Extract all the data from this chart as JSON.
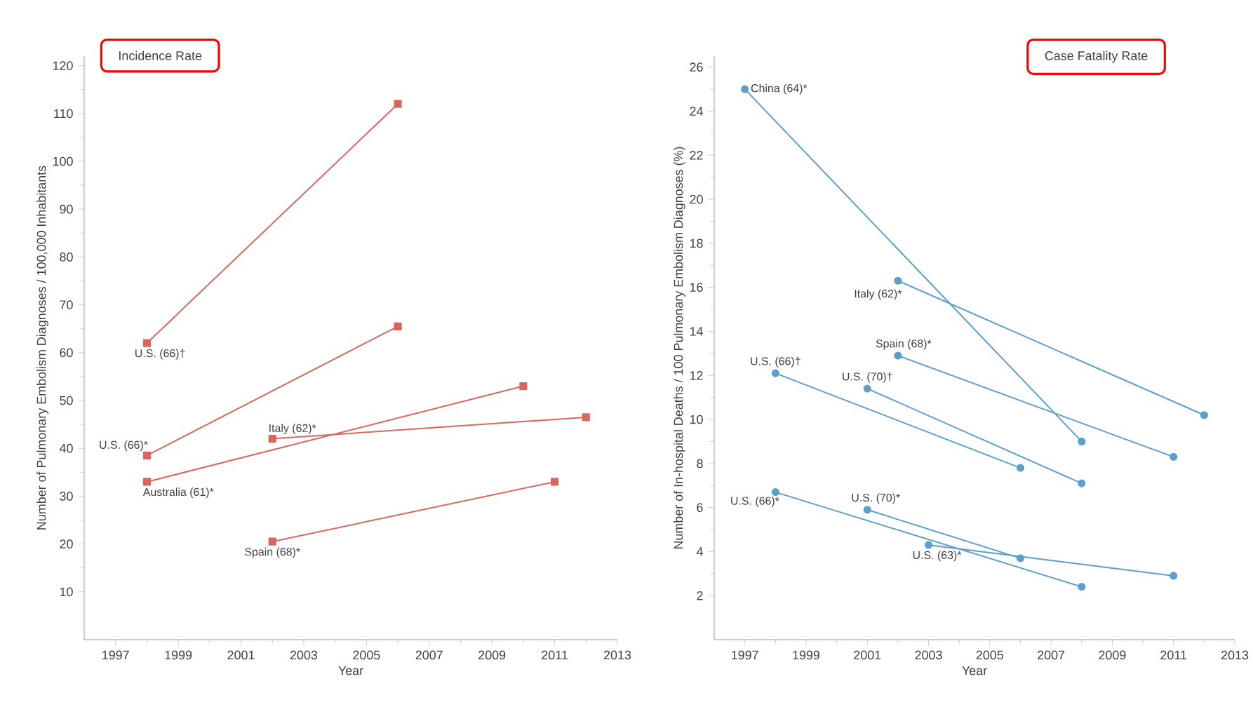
{
  "chart_data": [
    {
      "type": "line",
      "title": "Incidence Rate",
      "xlabel": "Year",
      "ylabel": "Number of Pulmonary Embolism Diagnoses / 100,000 Inhabitants",
      "marker": "square",
      "xlim": [
        1996,
        2013
      ],
      "xticks": [
        1997,
        1999,
        2001,
        2003,
        2005,
        2007,
        2009,
        2011,
        2013
      ],
      "ylim": [
        0,
        122
      ],
      "yticks": [
        10,
        20,
        30,
        40,
        50,
        60,
        70,
        80,
        90,
        100,
        110,
        120
      ],
      "series": [
        {
          "name": "U.S. (66)†",
          "color": "#d9665f",
          "x": [
            1998,
            2006
          ],
          "values": [
            62,
            112
          ]
        },
        {
          "name": "U.S. (66)*",
          "color": "#d9665f",
          "x": [
            1998,
            2006
          ],
          "values": [
            38.5,
            65.5
          ]
        },
        {
          "name": "Australia (61)*",
          "color": "#d9665f",
          "x": [
            1998,
            2010
          ],
          "values": [
            33,
            53
          ]
        },
        {
          "name": "Italy (62)*",
          "color": "#d9665f",
          "x": [
            2002,
            2012
          ],
          "values": [
            42,
            46.5
          ]
        },
        {
          "name": "Spain (68)*",
          "color": "#d9665f",
          "x": [
            2002,
            2011
          ],
          "values": [
            20.5,
            33
          ]
        }
      ]
    },
    {
      "type": "line",
      "title": "Case Fatality Rate",
      "xlabel": "Year",
      "ylabel": "Number of In-hospital Deaths / 100 Pulmonary Embolism Diagnoses (%)",
      "marker": "circle",
      "xlim": [
        1996,
        2013
      ],
      "xticks": [
        1997,
        1999,
        2001,
        2003,
        2005,
        2007,
        2009,
        2011,
        2013
      ],
      "ylim": [
        0,
        26.5
      ],
      "yticks": [
        2,
        4,
        6,
        8,
        10,
        12,
        14,
        16,
        18,
        20,
        22,
        24,
        26
      ],
      "series": [
        {
          "name": "China (64)*",
          "color": "#5b9fcc",
          "x": [
            1997,
            2008
          ],
          "values": [
            25,
            9
          ]
        },
        {
          "name": "Italy (62)*",
          "color": "#5b9fcc",
          "x": [
            2002,
            2012
          ],
          "values": [
            16.3,
            10.2
          ]
        },
        {
          "name": "Spain (68)*",
          "color": "#5b9fcc",
          "x": [
            2002,
            2011
          ],
          "values": [
            12.9,
            8.3
          ]
        },
        {
          "name": "U.S. (66)†",
          "color": "#5b9fcc",
          "x": [
            1998,
            2006
          ],
          "values": [
            12.1,
            7.8
          ]
        },
        {
          "name": "U.S. (70)†",
          "color": "#5b9fcc",
          "x": [
            2001,
            2008
          ],
          "values": [
            11.4,
            7.1
          ]
        },
        {
          "name": "U.S. (66)*",
          "color": "#5b9fcc",
          "x": [
            1998,
            2008
          ],
          "values": [
            6.7,
            2.4
          ]
        },
        {
          "name": "U.S. (70)*",
          "color": "#5b9fcc",
          "x": [
            2001,
            2006
          ],
          "values": [
            5.9,
            3.7
          ]
        },
        {
          "name": "U.S. (63)*",
          "color": "#5b9fcc",
          "x": [
            2003,
            2011
          ],
          "values": [
            4.3,
            2.9
          ]
        }
      ]
    }
  ]
}
